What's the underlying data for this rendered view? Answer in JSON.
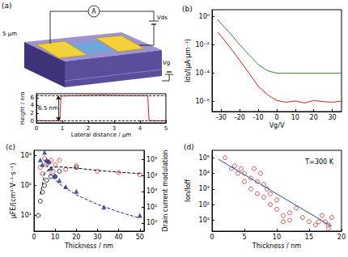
{
  "schematic": {
    "panel": "(a)",
    "ammeter": "A",
    "drain_voltage": "Vds",
    "gate_voltage": "Vg",
    "scale_bar": "5 μm"
  },
  "chart_data": [
    {
      "type": "line",
      "x_label": "Lateral distance / μm",
      "y_label": "Height / nm",
      "xlim": [
        0,
        5
      ],
      "xticks": [
        0,
        1,
        2,
        3,
        4,
        5
      ],
      "ylim": [
        -0.5,
        7
      ],
      "yticks": [
        0,
        2,
        4,
        6
      ],
      "grid": false,
      "annotations": [
        {
          "text": "6.5 nm",
          "from": 0,
          "to": 6.5
        }
      ],
      "x": [
        0,
        0.4,
        0.9,
        0.95,
        1.5,
        2.5,
        3.5,
        4.3,
        4.35,
        4.8,
        5
      ],
      "series": [
        {
          "color": "#e41a1c",
          "marker": "none",
          "values": [
            0.1,
            0,
            0.1,
            6.4,
            6.5,
            6.6,
            6.5,
            6.5,
            0.1,
            0,
            0.1
          ]
        }
      ]
    },
    {
      "type": "line",
      "panel": "(b)",
      "x_label": "Vg/V",
      "y_label": "Ids/(μA·μm⁻¹)",
      "log": "y",
      "xlim": [
        -35,
        35
      ],
      "xticks": [
        -30,
        -20,
        -10,
        0,
        10,
        20,
        30
      ],
      "ylim": [
        2e-07,
        3
      ],
      "yticks": [
        {
          "value": 1e-06,
          "label": "10⁻⁶"
        },
        {
          "value": 0.0001,
          "label": "10⁻⁴"
        },
        {
          "value": 0.01,
          "label": "10⁻²"
        },
        {
          "value": 1,
          "label": "10⁰"
        }
      ],
      "grid": false,
      "x": [
        -32,
        -30,
        -25,
        -20,
        -15,
        -10,
        -5,
        0,
        5,
        10,
        15,
        20,
        25,
        30,
        35
      ],
      "series": [
        {
          "color": "#2e8b2e",
          "marker": "none",
          "values": [
            0.6,
            0.3,
            0.06,
            0.01,
            0.002,
            0.0004,
            0.00015,
            0.0001,
            0.0001,
            0.0001,
            0.0001,
            0.0001,
            0.0001,
            0.0001,
            0.0001
          ]
        },
        {
          "color": "#e41a1c",
          "marker": "none",
          "values": [
            0.08,
            0.04,
            0.006,
            0.0008,
            0.0001,
            1.2e-05,
            3e-06,
            1.2e-06,
            9e-07,
            1.1e-06,
            8e-07,
            1.2e-06,
            1e-06,
            9e-07,
            1.1e-06
          ]
        }
      ]
    },
    {
      "type": "scatter",
      "panel": "(c)",
      "x_label": "Thickness / nm",
      "y_label": "μFE/(cm²·V⁻¹·s⁻¹)",
      "y2_label": "Drain current modulation",
      "log": "y",
      "xlim": [
        0,
        52
      ],
      "xticks": [
        0,
        10,
        20,
        30,
        40,
        50
      ],
      "ylim": [
        3,
        1500
      ],
      "yticks": [
        {
          "value": 10,
          "label": "10¹"
        },
        {
          "value": 100,
          "label": "10²"
        },
        {
          "value": 1000,
          "label": "10³"
        }
      ],
      "y2lim": [
        3,
        400000
      ],
      "y2ticks": [
        {
          "value": 10,
          "label": "10¹"
        },
        {
          "value": 100,
          "label": "10²"
        },
        {
          "value": 1000,
          "label": "10³"
        },
        {
          "value": 10000,
          "label": "10⁴"
        },
        {
          "value": 100000,
          "label": "10⁵"
        }
      ],
      "grid": false,
      "series": [
        {
          "type": "scatter",
          "color": "#e41a1c",
          "marker": "open_circle",
          "x": [
            3,
            4,
            5,
            6,
            7,
            8,
            9,
            10,
            12,
            15,
            20,
            30,
            40,
            50
          ],
          "values": [
            400,
            250,
            800,
            500,
            600,
            700,
            300,
            500,
            700,
            350,
            450,
            300,
            270,
            230
          ]
        },
        {
          "type": "scatter",
          "color": "#000000",
          "marker": "open_circle",
          "x": [
            2,
            3,
            4,
            5,
            6,
            8,
            10,
            12,
            20
          ],
          "values": [
            10,
            30,
            60,
            100,
            150,
            200,
            200,
            300,
            400
          ]
        },
        {
          "type": "line",
          "color": "#000000",
          "marker": "none",
          "line_style": "dashed",
          "x": [
            3,
            5,
            8,
            12,
            20,
            30,
            40,
            50
          ],
          "values": [
            50,
            250,
            400,
            420,
            380,
            320,
            280,
            250
          ]
        },
        {
          "type": "scatter",
          "color": "#1a2a8c",
          "marker": "triangle",
          "axis": "y2",
          "x": [
            3,
            4,
            5,
            6,
            7,
            8,
            10,
            12,
            15,
            20,
            33,
            50
          ],
          "values": [
            100000,
            50000,
            300000,
            100000,
            80000,
            30000,
            10000,
            5000,
            2000,
            1000,
            100,
            30
          ]
        },
        {
          "type": "line",
          "color": "#1a2a8c",
          "marker": "none",
          "line_style": "dashed",
          "axis": "y2",
          "x": [
            5,
            8,
            12,
            20,
            30,
            40,
            50
          ],
          "values": [
            100000,
            10000,
            3000,
            600,
            150,
            50,
            20
          ]
        }
      ]
    },
    {
      "type": "scatter",
      "panel": "(d)",
      "annotations": [
        {
          "text": "T=300 K"
        }
      ],
      "x_label": "Thickness / nm",
      "y_label": "Ion/Ioff",
      "log": "y",
      "xlim": [
        0,
        20
      ],
      "xticks": [
        0,
        5,
        10,
        15,
        20
      ],
      "ylim": [
        2,
        300000
      ],
      "yticks": [
        {
          "value": 10,
          "label": "10¹"
        },
        {
          "value": 100,
          "label": "10²"
        },
        {
          "value": 1000,
          "label": "10³"
        },
        {
          "value": 10000,
          "label": "10⁴"
        },
        {
          "value": 100000,
          "label": "10⁵"
        }
      ],
      "grid": false,
      "series": [
        {
          "type": "scatter",
          "color": "#d42a2a",
          "marker": "open_circle",
          "x": [
            2,
            3,
            3.5,
            4,
            4.5,
            5,
            5,
            6,
            6,
            6.5,
            7,
            7,
            7.5,
            8,
            8,
            8.5,
            9,
            9,
            10,
            10,
            11,
            11,
            12,
            12,
            13,
            14,
            15,
            16,
            16.5,
            17,
            17.5,
            18,
            18,
            18.5
          ],
          "values": [
            100000,
            20000,
            30000,
            10000,
            20000,
            3000,
            10000,
            5000,
            1000,
            20000,
            3000,
            500,
            10000,
            300,
            2000,
            1000,
            100,
            500,
            50,
            200,
            20,
            8,
            30,
            10,
            60,
            15,
            8,
            5,
            8,
            20,
            8,
            5,
            3,
            15
          ]
        },
        {
          "type": "line",
          "color": "#1f4fa0",
          "marker": "none",
          "x": [
            1,
            18.5
          ],
          "values": [
            80000,
            4
          ]
        }
      ]
    }
  ]
}
